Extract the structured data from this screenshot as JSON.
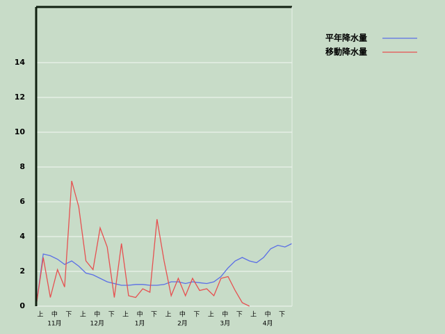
{
  "chart_data": {
    "type": "line",
    "categories": [
      "上",
      null,
      "中",
      null,
      "下",
      null,
      "上",
      null,
      "中",
      null,
      "下",
      null,
      "上",
      null,
      "中",
      null,
      "下",
      null,
      "上",
      null,
      "中",
      null,
      "下",
      null,
      "上",
      null,
      "中",
      null,
      "下",
      null,
      "上",
      null,
      "中",
      null,
      "下",
      null,
      null
    ],
    "months": [
      "11月",
      "12月",
      "1月",
      "2月",
      "3月",
      "4月"
    ],
    "series": [
      {
        "name": "平年降水量",
        "color": "#5a6ee6",
        "values": [
          0,
          3.0,
          2.9,
          2.7,
          2.4,
          2.6,
          2.3,
          1.9,
          1.8,
          1.6,
          1.4,
          1.3,
          1.2,
          1.2,
          1.25,
          1.25,
          1.2,
          1.2,
          1.25,
          1.4,
          1.4,
          1.3,
          1.4,
          1.35,
          1.3,
          1.4,
          1.7,
          2.2,
          2.6,
          2.8,
          2.6,
          2.5,
          2.8,
          3.3,
          3.5,
          3.4,
          3.6
        ]
      },
      {
        "name": "移動降水量",
        "color": "#e65050",
        "values": [
          0,
          2.8,
          0.5,
          2.1,
          1.1,
          7.2,
          5.7,
          2.6,
          2.1,
          4.5,
          3.4,
          0.5,
          3.6,
          0.6,
          0.5,
          1.0,
          0.8,
          5.0,
          2.6,
          0.6,
          1.6,
          0.6,
          1.6,
          0.9,
          1.0,
          0.6,
          1.6,
          1.7,
          0.9,
          0.2,
          0,
          null,
          null,
          null,
          null,
          null,
          null
        ]
      }
    ],
    "ylim": [
      0,
      17.2
    ],
    "yticks": [
      0,
      2,
      4,
      6,
      8,
      10,
      12,
      14
    ],
    "grid": true
  }
}
